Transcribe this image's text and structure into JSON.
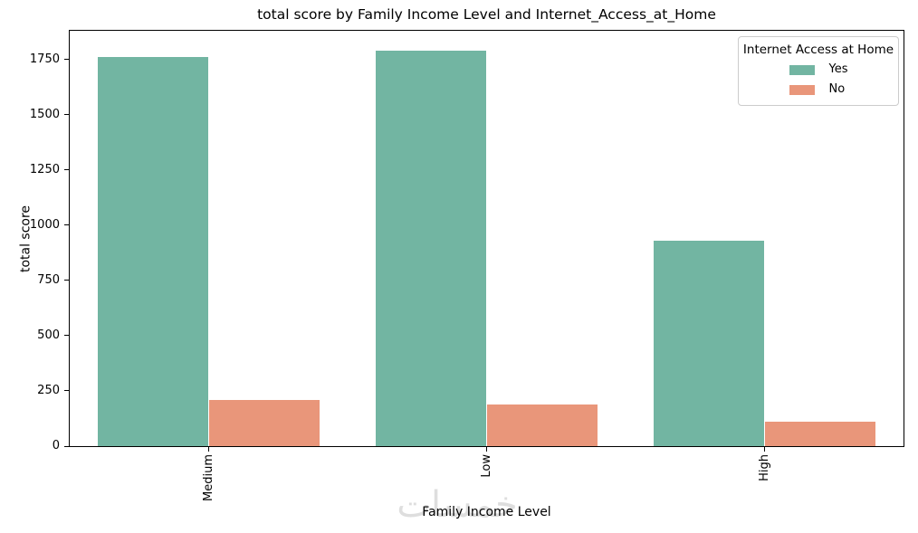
{
  "figure": {
    "title": "total score by Family Income Level and Internet_Access_at_Home",
    "xlabel": "Family Income Level",
    "ylabel": "total score",
    "watermark": "خمسات"
  },
  "legend": {
    "title": "Internet Access at Home",
    "entries": [
      {
        "label": "Yes",
        "color": "#72b5a2"
      },
      {
        "label": "No",
        "color": "#e9967a"
      }
    ]
  },
  "chart_data": {
    "type": "bar",
    "title": "total score by Family Income Level and Internet_Access_at_Home",
    "xlabel": "Family Income Level",
    "ylabel": "total score",
    "categories": [
      "Medium",
      "Low",
      "High"
    ],
    "series": [
      {
        "name": "Yes",
        "color": "#72b5a2",
        "values": [
          1760,
          1790,
          930
        ]
      },
      {
        "name": "No",
        "color": "#e9967a",
        "values": [
          210,
          190,
          110
        ]
      }
    ],
    "yticks": [
      0,
      250,
      500,
      750,
      1000,
      1250,
      1500,
      1750
    ],
    "ylim": [
      0,
      1880
    ],
    "xtick_rotation": 90,
    "grid": false,
    "legend_position": "upper right",
    "legend_title": "Internet Access at Home",
    "bar_width_fraction": 0.4
  }
}
